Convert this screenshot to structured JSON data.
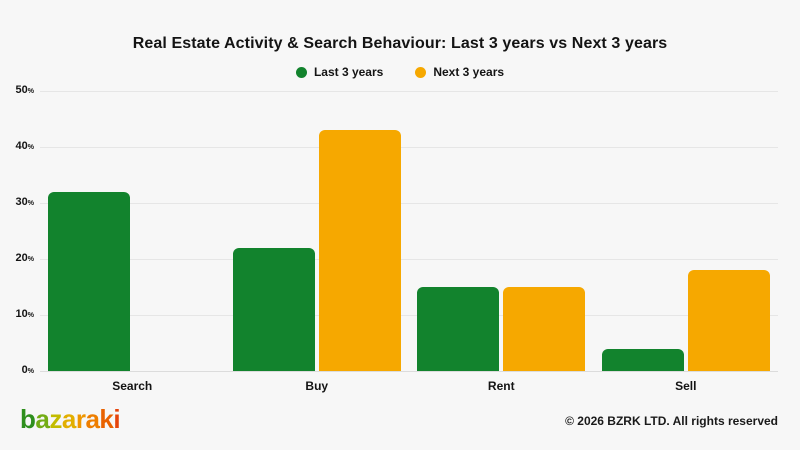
{
  "title": "Real Estate Activity & Search Behaviour: Last 3 years vs Next 3 years",
  "chart_data": {
    "type": "bar",
    "title": "Real Estate Activity & Search Behaviour: Last 3 years vs Next 3 years",
    "categories": [
      "Search",
      "Buy",
      "Rent",
      "Sell"
    ],
    "series": [
      {
        "name": "Last 3 years",
        "color": "#12832D",
        "values": [
          32,
          22,
          15,
          4
        ]
      },
      {
        "name": "Next 3 years",
        "color": "#F6A800",
        "values": [
          null,
          43,
          15,
          18
        ]
      }
    ],
    "xlabel": "",
    "ylabel": "",
    "ylim": [
      0,
      50
    ],
    "yticks": [
      0,
      10,
      20,
      30,
      40,
      50
    ],
    "ytick_suffix": "%",
    "grid": "horizontal",
    "legend_position": "top-center"
  },
  "footer": {
    "logo_word": "bazaraki",
    "logo_letters": [
      {
        "ch": "b",
        "color": "#2E8F1D"
      },
      {
        "ch": "a",
        "color": "#73AC15"
      },
      {
        "ch": "z",
        "color": "#C3BC00"
      },
      {
        "ch": "a",
        "color": "#E2AF00"
      },
      {
        "ch": "r",
        "color": "#EF9600"
      },
      {
        "ch": "a",
        "color": "#EE7E00"
      },
      {
        "ch": "k",
        "color": "#E96200"
      },
      {
        "ch": "i",
        "color": "#E5440C"
      }
    ],
    "copyright": "© 2026 BZRK LTD. All rights reserved"
  },
  "colors": {
    "background": "#F7F7F7",
    "grid": "#E6E6E6",
    "text": "#141414",
    "green": "#12832D",
    "orange": "#F6A800"
  }
}
